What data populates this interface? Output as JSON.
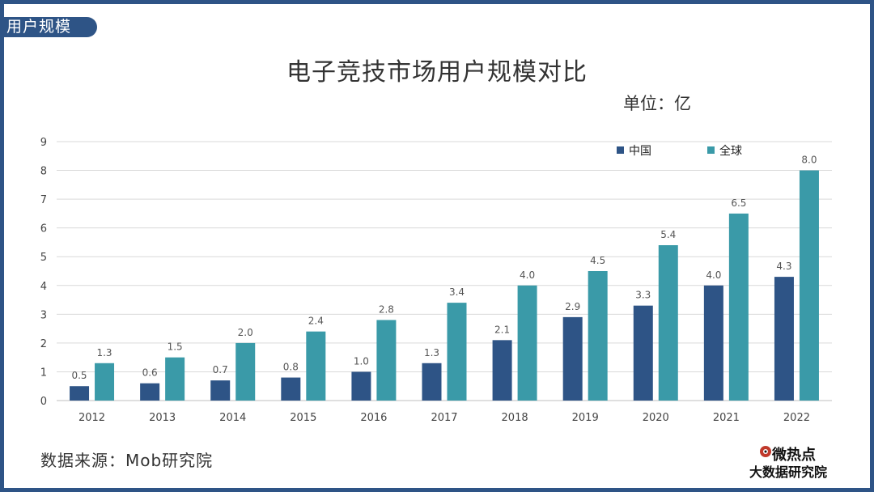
{
  "section_tag": "用户规模",
  "unit_label": "单位：亿",
  "source": "数据来源：Mob研究院",
  "brand": {
    "line1": "微热点",
    "line2": "大数据研究院"
  },
  "colors": {
    "china": "#2e5486",
    "global": "#3a9aa8",
    "frame": "#2e5486"
  },
  "chart_data": {
    "type": "bar",
    "title": "电子竞技市场用户规模对比",
    "categories": [
      "2012",
      "2013",
      "2014",
      "2015",
      "2016",
      "2017",
      "2018",
      "2019",
      "2020",
      "2021",
      "2022"
    ],
    "series": [
      {
        "name": "中国",
        "values": [
          0.5,
          0.6,
          0.7,
          0.8,
          1.0,
          1.3,
          2.1,
          2.9,
          3.3,
          4.0,
          4.3
        ],
        "labels": [
          "0.5",
          "0.6",
          "0.7",
          "0.8",
          "1.0",
          "1.3",
          "2.1",
          "2.9",
          "3.3",
          "4.0",
          "4.3"
        ]
      },
      {
        "name": "全球",
        "values": [
          1.3,
          1.5,
          2.0,
          2.4,
          2.8,
          3.4,
          4.0,
          4.5,
          5.4,
          6.5,
          8.0
        ],
        "labels": [
          "1.3",
          "1.5",
          "2.0",
          "2.4",
          "2.8",
          "3.4",
          "4.0",
          "4.5",
          "5.4",
          "6.5",
          "8.0"
        ]
      }
    ],
    "ylim": [
      0,
      9
    ],
    "yticks": [
      "0",
      "1",
      "2",
      "3",
      "4",
      "5",
      "6",
      "7",
      "8",
      "9"
    ],
    "grid": true,
    "legend_position": "top-right"
  }
}
